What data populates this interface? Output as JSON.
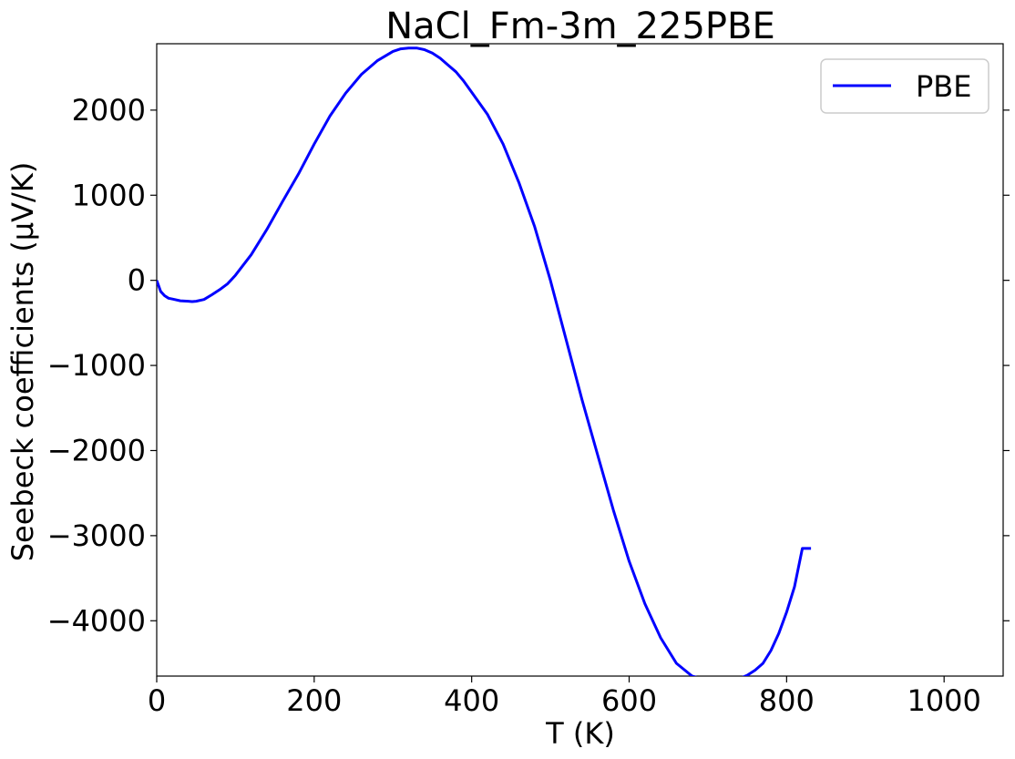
{
  "chart_data": {
    "type": "line",
    "title": "NaCl_Fm-3m_225PBE",
    "xlabel": "T (K)",
    "ylabel": "Seebeck coefficients (µV/K)",
    "xlim": [
      0,
      1075
    ],
    "ylim": [
      -4650,
      2780
    ],
    "xticks": [
      0,
      200,
      400,
      600,
      800,
      1000
    ],
    "xtick_labels": [
      "0",
      "200",
      "400",
      "600",
      "800",
      "1000"
    ],
    "yticks": [
      -4000,
      -3000,
      -2000,
      -1000,
      0,
      1000,
      2000
    ],
    "ytick_labels": [
      "−4000",
      "−3000",
      "−2000",
      "−1000",
      "0",
      "1000",
      "2000"
    ],
    "grid": false,
    "legend": {
      "position": "top-right",
      "entries": [
        "PBE"
      ]
    },
    "colors": {
      "PBE": "#0000ff"
    },
    "series": [
      {
        "name": "PBE",
        "x": [
          0,
          5,
          10,
          15,
          20,
          30,
          40,
          45,
          50,
          60,
          70,
          80,
          90,
          100,
          120,
          140,
          160,
          180,
          200,
          220,
          240,
          260,
          280,
          300,
          310,
          320,
          330,
          340,
          350,
          360,
          370,
          380,
          390,
          400,
          420,
          440,
          460,
          480,
          500,
          520,
          540,
          560,
          580,
          600,
          620,
          640,
          660,
          680,
          700,
          720,
          730,
          740,
          750,
          760,
          770,
          780,
          790,
          800,
          810,
          820,
          831
        ],
        "y": [
          0,
          -130,
          -180,
          -210,
          -220,
          -240,
          -245,
          -250,
          -245,
          -225,
          -170,
          -110,
          -40,
          60,
          300,
          600,
          930,
          1250,
          1600,
          1930,
          2200,
          2420,
          2580,
          2690,
          2720,
          2730,
          2730,
          2710,
          2670,
          2610,
          2530,
          2450,
          2340,
          2210,
          1950,
          1600,
          1150,
          630,
          0,
          -700,
          -1400,
          -2050,
          -2700,
          -3300,
          -3800,
          -4200,
          -4500,
          -4650,
          -4700,
          -4720,
          -4700,
          -4680,
          -4640,
          -4580,
          -4500,
          -4350,
          -4150,
          -3900,
          -3600,
          -3150,
          -3150
        ]
      }
    ]
  }
}
